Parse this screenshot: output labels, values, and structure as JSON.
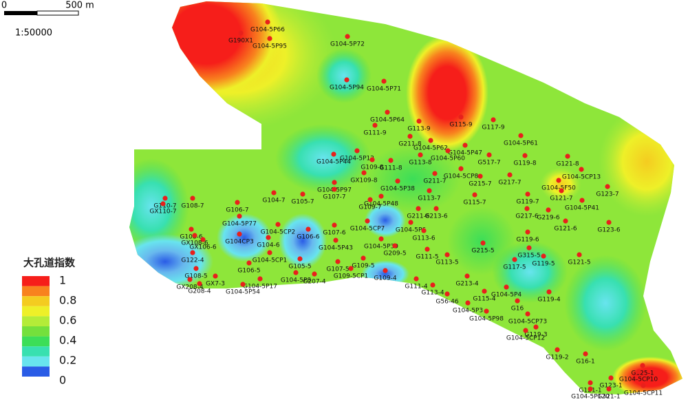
{
  "scale_bar": {
    "zero": "0",
    "distance": "500 m",
    "ratio": "1:50000"
  },
  "legend": {
    "title": "大孔道指数",
    "levels": [
      1,
      0.8,
      0.6,
      0.4,
      0.2,
      0
    ],
    "band_colors": [
      "#f61e1a",
      "#f8821e",
      "#f4cc20",
      "#eef028",
      "#b4ec38",
      "#74e03c",
      "#3cde58",
      "#38e0b0",
      "#68e4ee",
      "#2a5ce6"
    ]
  },
  "well_color": "#e8201c",
  "wells": [
    {
      "label": "G104-5P66"
    },
    {
      "label": "G190X1"
    },
    {
      "label": "G104-5P95"
    },
    {
      "label": "G104-5P72"
    },
    {
      "label": "G104-5P94"
    },
    {
      "label": "G104-5P71"
    },
    {
      "label": "G115-9"
    },
    {
      "label": "G117-9"
    },
    {
      "label": "G113-9"
    },
    {
      "label": "G104-5P64"
    },
    {
      "label": "G111-9"
    },
    {
      "label": "G104-5P61"
    },
    {
      "label": "G211-8"
    },
    {
      "label": "G104-5P62"
    },
    {
      "label": "G104-5P47"
    },
    {
      "label": "G104-5P60"
    },
    {
      "label": "G104-5P12"
    },
    {
      "label": "G104-5P44"
    },
    {
      "label": "G113-8"
    },
    {
      "label": "G517-7"
    },
    {
      "label": "G119-8"
    },
    {
      "label": "G121-8"
    },
    {
      "label": "G104-5CP13"
    },
    {
      "label": "G109-8"
    },
    {
      "label": "G111-8"
    },
    {
      "label": "G211-7"
    },
    {
      "label": "G104-5CP8"
    },
    {
      "label": "G215-7"
    },
    {
      "label": "G217-7"
    },
    {
      "label": "G104-5F50"
    },
    {
      "label": "G123-7"
    },
    {
      "label": "GX109-8"
    },
    {
      "label": "G104-5P97"
    },
    {
      "label": "G104-5P38"
    },
    {
      "label": "G113-7"
    },
    {
      "label": "G115-7"
    },
    {
      "label": "G119-7"
    },
    {
      "label": "G121-7"
    },
    {
      "label": "G104-5P41"
    },
    {
      "label": "G104-5P48"
    },
    {
      "label": "G109-7"
    },
    {
      "label": "G107-7"
    },
    {
      "label": "G105-7"
    },
    {
      "label": "G104-7"
    },
    {
      "label": "G108-7"
    },
    {
      "label": "G106-7"
    },
    {
      "label": "G110-7"
    },
    {
      "label": "GX110-7"
    },
    {
      "label": "G104-5P77"
    },
    {
      "label": "G211-6"
    },
    {
      "label": "G213-6"
    },
    {
      "label": "G217-6"
    },
    {
      "label": "G219-6"
    },
    {
      "label": "G121-6"
    },
    {
      "label": "G123-6"
    },
    {
      "label": "G104-5P6"
    },
    {
      "label": "G104-5CP7"
    },
    {
      "label": "G104-5CP2"
    },
    {
      "label": "G104-6"
    },
    {
      "label": "G108-6"
    },
    {
      "label": "G104CP3"
    },
    {
      "label": "GX106-6"
    },
    {
      "label": "GX108-6"
    },
    {
      "label": "G106-6"
    },
    {
      "label": "G107-6"
    },
    {
      "label": "G113-6"
    },
    {
      "label": "G119-6"
    },
    {
      "label": "G104-5P43"
    },
    {
      "label": "G104-5P39"
    },
    {
      "label": "G209-5"
    },
    {
      "label": "G122-4"
    },
    {
      "label": "G104-5CP1"
    },
    {
      "label": "G108-5"
    },
    {
      "label": "G106-5"
    },
    {
      "label": "G105-5"
    },
    {
      "label": "G107-5"
    },
    {
      "label": "G109-5"
    },
    {
      "label": "G111-5"
    },
    {
      "label": "G113-5"
    },
    {
      "label": "G117-5"
    },
    {
      "label": "G121-5"
    },
    {
      "label": "G119-5"
    },
    {
      "label": "G315-5"
    },
    {
      "label": "G215-5"
    },
    {
      "label": "G109-5CP1"
    },
    {
      "label": "GX7-3"
    },
    {
      "label": "G104-5P17"
    },
    {
      "label": "G104-5P8"
    },
    {
      "label": "G207-4"
    },
    {
      "label": "GX208-4"
    },
    {
      "label": "G208-4"
    },
    {
      "label": "G104-5P54"
    },
    {
      "label": "G109-4"
    },
    {
      "label": "G111-4"
    },
    {
      "label": "G213-4"
    },
    {
      "label": "G115-4"
    },
    {
      "label": "G104-5P4"
    },
    {
      "label": "G113-4"
    },
    {
      "label": "G56-46"
    },
    {
      "label": "G16"
    },
    {
      "label": "G119-4"
    },
    {
      "label": "G104-5P3"
    },
    {
      "label": "G104-5P98"
    },
    {
      "label": "G104-5CP73"
    },
    {
      "label": "G119-3"
    },
    {
      "label": "G104-5CP12"
    },
    {
      "label": "G119-2"
    },
    {
      "label": "G16-1"
    },
    {
      "label": "G125-1"
    },
    {
      "label": "G104-5CP10"
    },
    {
      "label": "G123-1"
    },
    {
      "label": "G121-1"
    },
    {
      "label": "G104-5P120"
    },
    {
      "label": "G321-1"
    },
    {
      "label": "G104-5CP11"
    }
  ]
}
